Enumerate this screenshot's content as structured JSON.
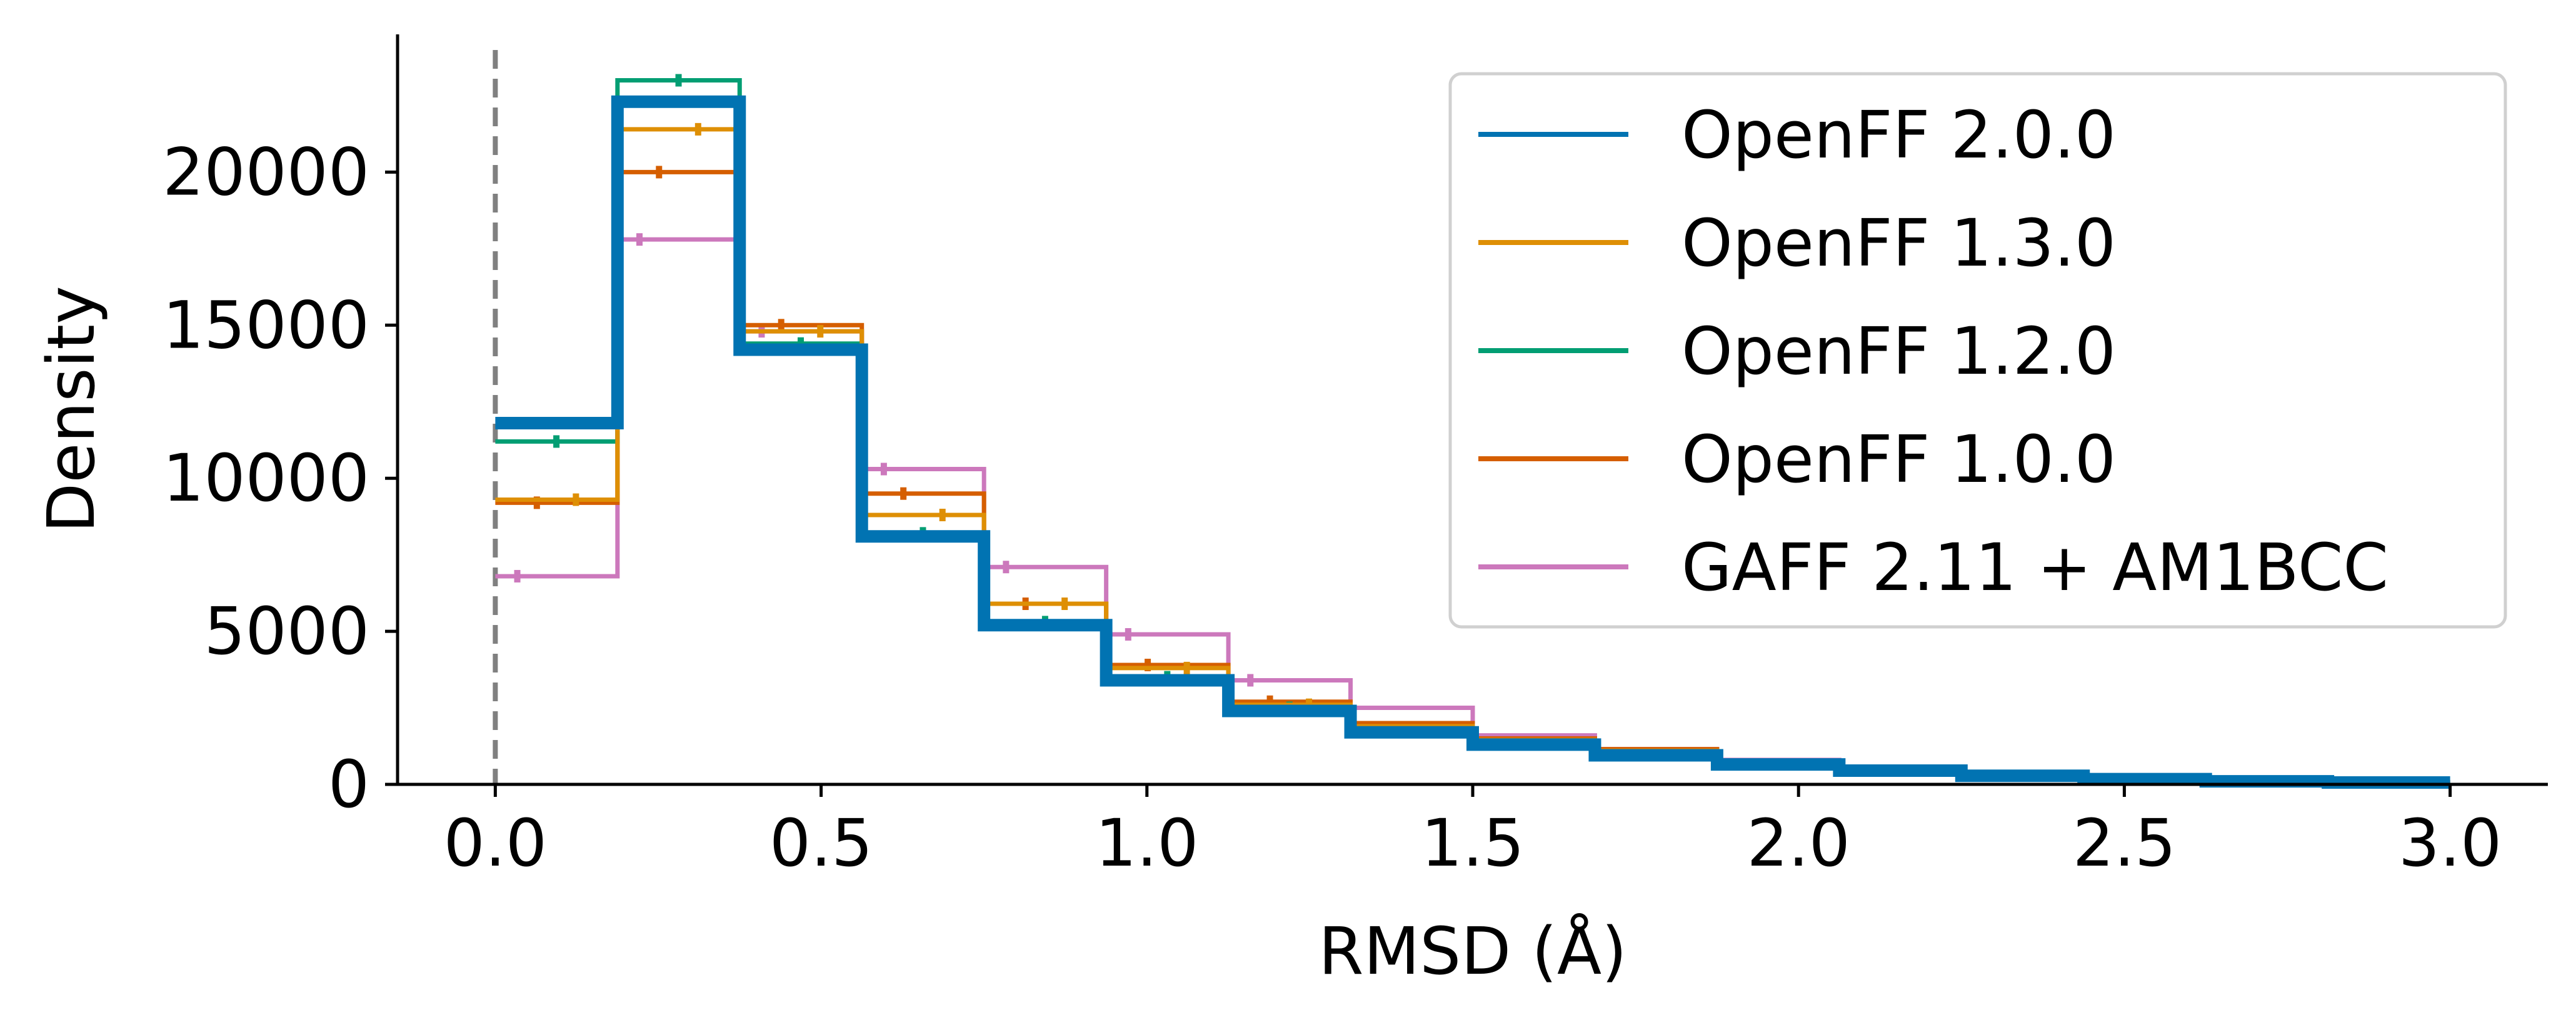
{
  "chart_data": {
    "type": "histogram-step",
    "xlabel": "RMSD (Å)",
    "ylabel": "Density",
    "xlim": [
      -0.15,
      3.15
    ],
    "ylim": [
      0,
      24500
    ],
    "x_ticks": [
      0.0,
      0.5,
      1.0,
      1.5,
      2.0,
      2.5,
      3.0
    ],
    "x_tick_labels": [
      "0.0",
      "0.5",
      "1.0",
      "1.5",
      "2.0",
      "2.5",
      "3.0"
    ],
    "y_ticks": [
      0,
      5000,
      10000,
      15000,
      20000
    ],
    "y_tick_labels": [
      "0",
      "5000",
      "10000",
      "15000",
      "20000"
    ],
    "grid": false,
    "legend_position": "top-right",
    "reference_line": {
      "x": 0.0,
      "style": "dashed",
      "color": "#808080"
    },
    "bin_edges": [
      0.0,
      0.1875,
      0.375,
      0.5625,
      0.75,
      0.9375,
      1.125,
      1.3125,
      1.5,
      1.6875,
      1.875,
      2.0625,
      2.25,
      2.4375,
      2.625,
      2.8125,
      3.0
    ],
    "series": [
      {
        "name": "GAFF 2.11 + AM1BCC",
        "color": "#cc78bc",
        "thick": false,
        "values": [
          6800,
          17800,
          14800,
          10300,
          7100,
          4900,
          3400,
          2500,
          1600,
          1150,
          800,
          550,
          350,
          200,
          120,
          80
        ]
      },
      {
        "name": "OpenFF 1.0.0",
        "color": "#d55e00",
        "thick": false,
        "values": [
          9200,
          20000,
          15000,
          9500,
          5900,
          3900,
          2700,
          2000,
          1500,
          1150,
          750,
          480,
          300,
          180,
          110,
          70
        ]
      },
      {
        "name": "OpenFF 1.2.0",
        "color": "#029e73",
        "thick": false,
        "values": [
          11200,
          23000,
          14400,
          8200,
          5300,
          3500,
          2500,
          1800,
          1400,
          1000,
          700,
          450,
          280,
          170,
          100,
          60
        ]
      },
      {
        "name": "OpenFF 1.3.0",
        "color": "#de8f05",
        "thick": false,
        "values": [
          9300,
          21400,
          14800,
          8800,
          5900,
          3800,
          2600,
          1900,
          1450,
          1100,
          750,
          480,
          300,
          180,
          110,
          70
        ]
      },
      {
        "name": "OpenFF 2.0.0",
        "color": "#0173b2",
        "thick": true,
        "values": [
          11800,
          22300,
          14200,
          8100,
          5200,
          3400,
          2400,
          1700,
          1300,
          950,
          650,
          450,
          280,
          170,
          100,
          60
        ]
      }
    ],
    "legend_order": [
      "OpenFF 2.0.0",
      "OpenFF 1.3.0",
      "OpenFF 1.2.0",
      "OpenFF 1.0.0",
      "GAFF 2.11 + AM1BCC"
    ]
  }
}
